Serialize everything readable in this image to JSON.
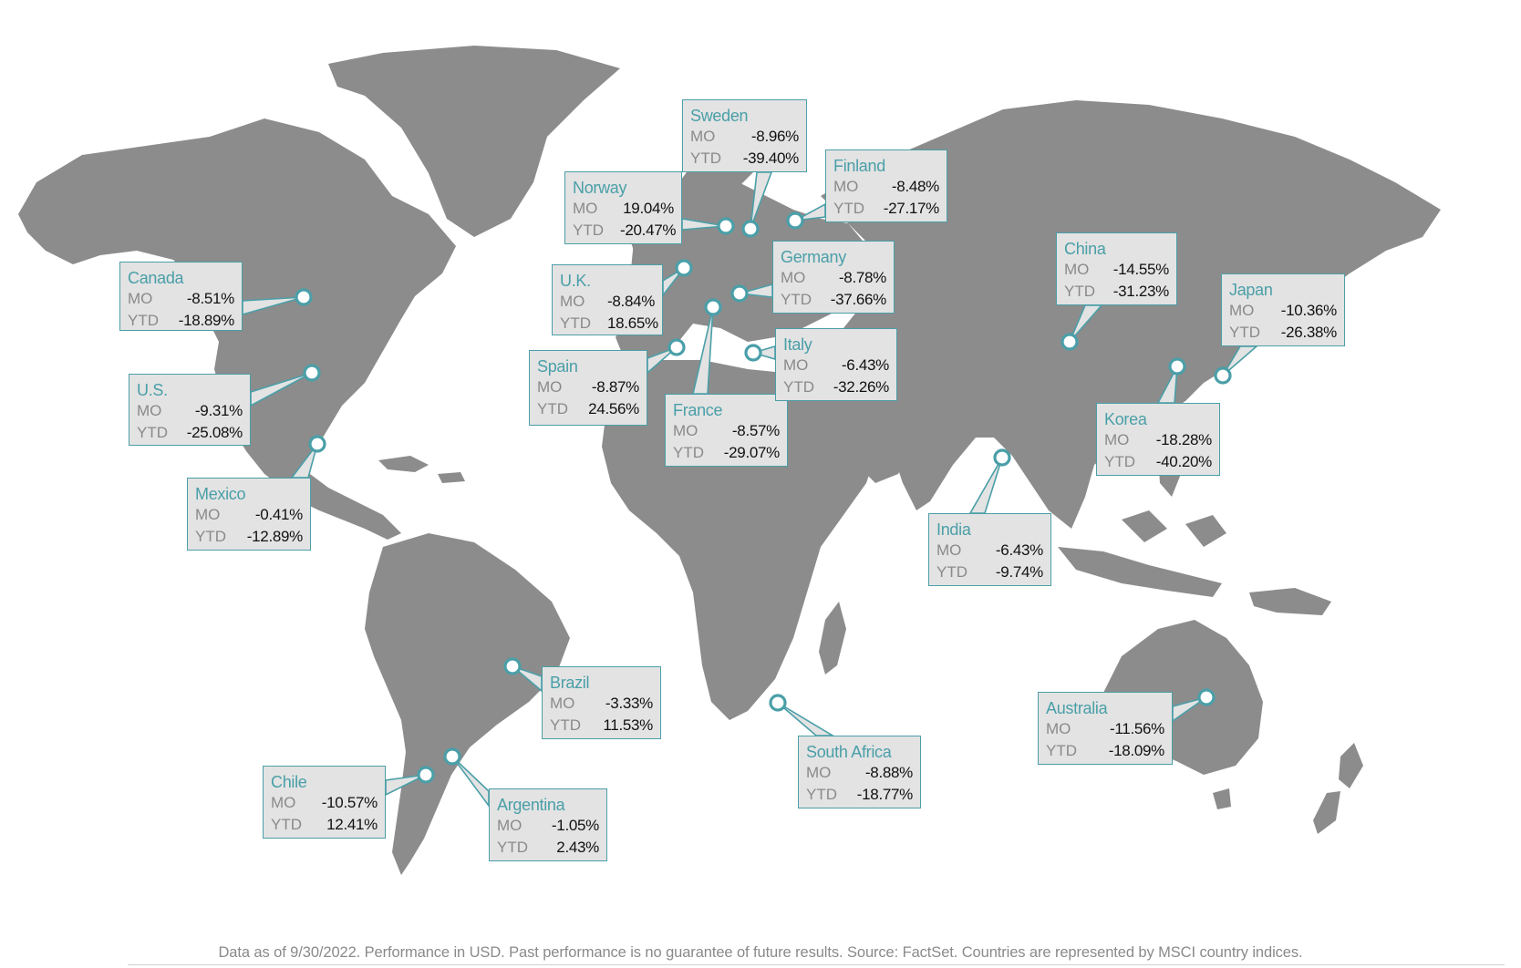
{
  "countries": [
    {
      "key": "canada",
      "name": "Canada",
      "mo_label": "MO",
      "ytd_label": "YTD",
      "mo": "-8.51%",
      "ytd": "-18.89%"
    },
    {
      "key": "us",
      "name": "U.S.",
      "mo_label": "MO",
      "ytd_label": "YTD",
      "mo": "-9.31%",
      "ytd": "-25.08%"
    },
    {
      "key": "mexico",
      "name": "Mexico",
      "mo_label": "MO",
      "ytd_label": "YTD",
      "mo": "-0.41%",
      "ytd": "-12.89%"
    },
    {
      "key": "brazil",
      "name": "Brazil",
      "mo_label": "MO",
      "ytd_label": "YTD",
      "mo": "-3.33%",
      "ytd": "11.53%"
    },
    {
      "key": "chile",
      "name": "Chile",
      "mo_label": "MO",
      "ytd_label": "YTD",
      "mo": "-10.57%",
      "ytd": "12.41%"
    },
    {
      "key": "argentina",
      "name": "Argentina",
      "mo_label": "MO",
      "ytd_label": "YTD",
      "mo": "-1.05%",
      "ytd": "2.43%"
    },
    {
      "key": "uk",
      "name": "U.K.",
      "mo_label": "MO",
      "ytd_label": "YTD",
      "mo": "-8.84%",
      "ytd": "18.65%"
    },
    {
      "key": "spain",
      "name": "Spain",
      "mo_label": "MO",
      "ytd_label": "YTD",
      "mo": "-8.87%",
      "ytd": "24.56%"
    },
    {
      "key": "france",
      "name": "France",
      "mo_label": "MO",
      "ytd_label": "YTD",
      "mo": "-8.57%",
      "ytd": "-29.07%"
    },
    {
      "key": "norway",
      "name": "Norway",
      "mo_label": "MO",
      "ytd_label": "YTD",
      "mo": "19.04%",
      "ytd": "-20.47%"
    },
    {
      "key": "sweden",
      "name": "Sweden",
      "mo_label": "MO",
      "ytd_label": "YTD",
      "mo": "-8.96%",
      "ytd": "-39.40%"
    },
    {
      "key": "finland",
      "name": "Finland",
      "mo_label": "MO",
      "ytd_label": "YTD",
      "mo": "-8.48%",
      "ytd": "-27.17%"
    },
    {
      "key": "germany",
      "name": "Germany",
      "mo_label": "MO",
      "ytd_label": "YTD",
      "mo": "-8.78%",
      "ytd": "-37.66%"
    },
    {
      "key": "italy",
      "name": "Italy",
      "mo_label": "MO",
      "ytd_label": "YTD",
      "mo": "-6.43%",
      "ytd": "-32.26%"
    },
    {
      "key": "south_africa",
      "name": "South Africa",
      "mo_label": "MO",
      "ytd_label": "YTD",
      "mo": "-8.88%",
      "ytd": "-18.77%"
    },
    {
      "key": "china",
      "name": "China",
      "mo_label": "MO",
      "ytd_label": "YTD",
      "mo": "-14.55%",
      "ytd": "-31.23%"
    },
    {
      "key": "japan",
      "name": "Japan",
      "mo_label": "MO",
      "ytd_label": "YTD",
      "mo": "-10.36%",
      "ytd": "-26.38%"
    },
    {
      "key": "korea",
      "name": "Korea",
      "mo_label": "MO",
      "ytd_label": "YTD",
      "mo": "-18.28%",
      "ytd": "-40.20%"
    },
    {
      "key": "india",
      "name": "India",
      "mo_label": "MO",
      "ytd_label": "YTD",
      "mo": "-6.43%",
      "ytd": "-9.74%"
    },
    {
      "key": "australia",
      "name": "Australia",
      "mo_label": "MO",
      "ytd_label": "YTD",
      "mo": "-11.56%",
      "ytd": "-18.09%"
    }
  ],
  "footer": "Data as of 9/30/2022. Performance in USD. Past performance is no guarantee of future results. Source: FactSet.  Countries are represented by MSCI country indices.",
  "colors": {
    "land": "#8c8c8c",
    "accent": "#4a9fa8",
    "callout_bg": "#e3e3e3",
    "label": "#8a8a8a",
    "value": "#111111"
  }
}
